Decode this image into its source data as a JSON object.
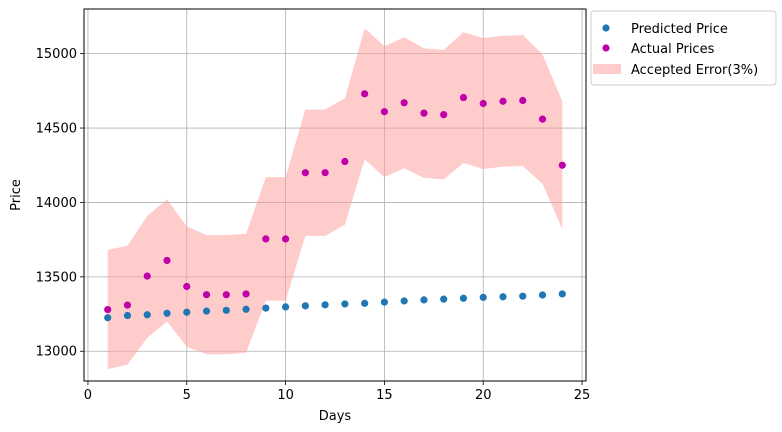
{
  "chart_data": {
    "type": "scatter",
    "title": "",
    "xlabel": "Days",
    "ylabel": "Price",
    "xlim": [
      -0.2,
      25.2
    ],
    "ylim": [
      12800,
      15300
    ],
    "xticks": [
      0,
      5,
      10,
      15,
      20,
      25
    ],
    "xtick_labels": [
      "0",
      "5",
      "10",
      "15",
      "20",
      "25"
    ],
    "yticks": [
      13000,
      13500,
      14000,
      14500,
      15000
    ],
    "ytick_labels": [
      "13000",
      "13500",
      "14000",
      "14500",
      "15000"
    ],
    "grid": true,
    "legend_position": "outside-top-right",
    "x": [
      1,
      2,
      3,
      4,
      5,
      6,
      7,
      8,
      9,
      10,
      11,
      12,
      13,
      14,
      15,
      16,
      17,
      18,
      19,
      20,
      21,
      22,
      23,
      24
    ],
    "series": [
      {
        "name": "Predicted Price",
        "kind": "scatter",
        "color": "#1f77b4",
        "values": [
          13225,
          13240,
          13245,
          13255,
          13262,
          13270,
          13275,
          13282,
          13290,
          13298,
          13305,
          13312,
          13318,
          13322,
          13330,
          13338,
          13345,
          13350,
          13356,
          13362,
          13366,
          13370,
          13378,
          13385
        ]
      },
      {
        "name": "Actual Prices",
        "kind": "scatter",
        "color": "#c000a8",
        "values": [
          13280,
          13310,
          13505,
          13610,
          13435,
          13380,
          13380,
          13385,
          13755,
          13755,
          14200,
          14200,
          14275,
          14730,
          14610,
          14670,
          14600,
          14590,
          14705,
          14665,
          14680,
          14685,
          14560,
          14250
        ]
      },
      {
        "name": "Accepted Error(3%)",
        "kind": "band",
        "color": "#ff9999",
        "lower": [
          12880,
          12910,
          13090,
          13200,
          13030,
          12980,
          12980,
          12990,
          13340,
          13340,
          13775,
          13775,
          13850,
          14290,
          14170,
          14230,
          14165,
          14155,
          14265,
          14225,
          14240,
          14245,
          14125,
          13820
        ],
        "upper": [
          13680,
          13710,
          13910,
          14020,
          13840,
          13780,
          13780,
          13790,
          14170,
          14170,
          14625,
          14625,
          14700,
          15170,
          15050,
          15110,
          15035,
          15025,
          15145,
          15105,
          15120,
          15125,
          14995,
          14680
        ]
      }
    ]
  }
}
